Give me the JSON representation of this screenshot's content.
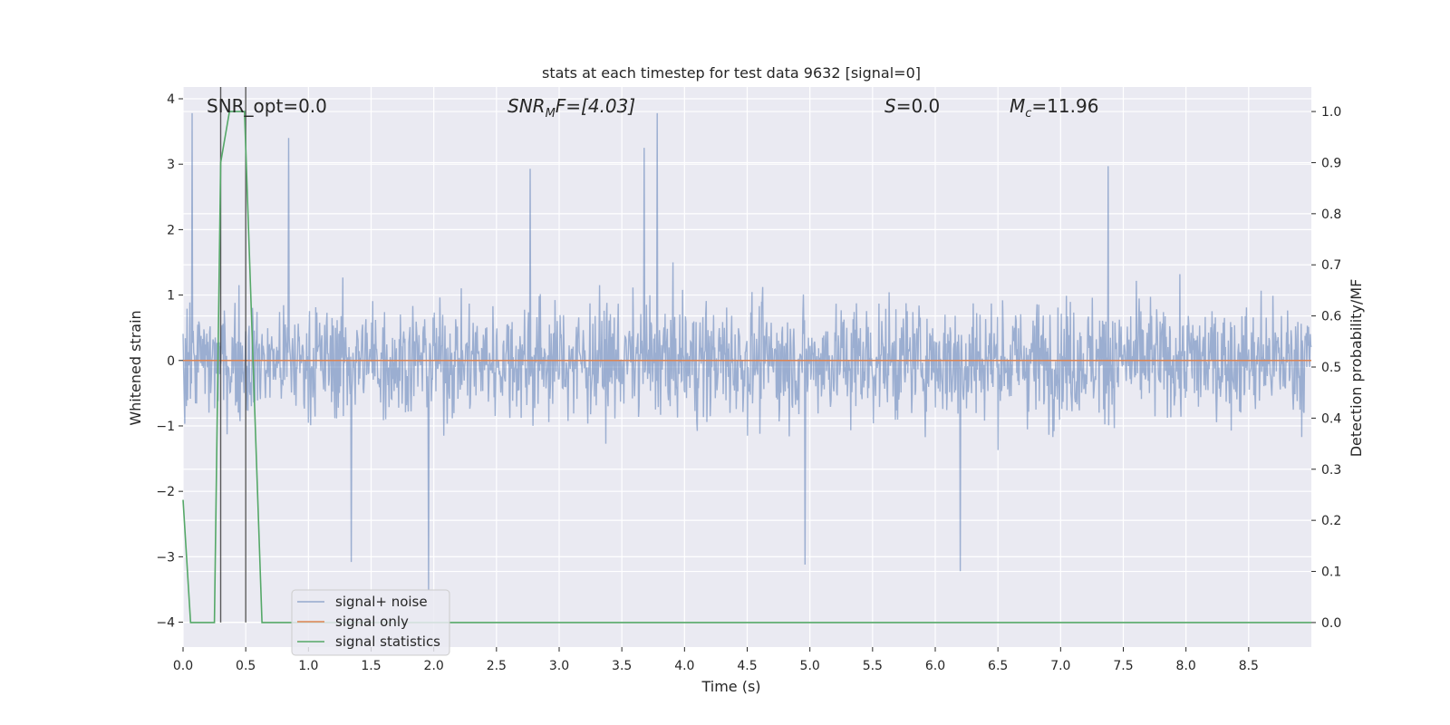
{
  "chart_data": {
    "type": "line",
    "title": "stats at each timestep for test data 9632 [signal=0]",
    "xlabel": "Time (s)",
    "ylabel_left": "Whitened strain",
    "ylabel_right": "Detection probability/MF",
    "xlim": [
      0,
      9.0
    ],
    "ylim_left": [
      -4.38,
      4.18
    ],
    "ylim_right": [
      -0.048,
      1.048
    ],
    "x_ticks": [
      0.0,
      0.5,
      1.0,
      1.5,
      2.0,
      2.5,
      3.0,
      3.5,
      4.0,
      4.5,
      5.0,
      5.5,
      6.0,
      6.5,
      7.0,
      7.5,
      8.0,
      8.5
    ],
    "x_tick_labels": [
      "0.0",
      "0.5",
      "1.0",
      "1.5",
      "2.0",
      "2.5",
      "3.0",
      "3.5",
      "4.0",
      "4.5",
      "5.0",
      "5.5",
      "6.0",
      "6.5",
      "7.0",
      "7.5",
      "8.0",
      "8.5"
    ],
    "y_ticks_left": [
      -4,
      -3,
      -2,
      -1,
      0,
      1,
      2,
      3,
      4
    ],
    "y_tick_labels_left": [
      "−4",
      "−3",
      "−2",
      "−1",
      "0",
      "1",
      "2",
      "3",
      "4"
    ],
    "y_ticks_right": [
      0.0,
      0.1,
      0.2,
      0.3,
      0.4,
      0.5,
      0.6,
      0.7,
      0.8,
      0.9,
      1.0
    ],
    "y_tick_labels_right": [
      "0.0",
      "0.1",
      "0.2",
      "0.3",
      "0.4",
      "0.5",
      "0.6",
      "0.7",
      "0.8",
      "0.9",
      "1.0"
    ],
    "annotations": {
      "snr_opt": "SNR_opt=0.0",
      "snr_mf_base": "SNR",
      "snr_mf_sub": "M",
      "snr_mf_rest": "F=[4.03]",
      "s_var": "S",
      "s_rest": "=0.0",
      "mc_base": "M",
      "mc_sub": "c",
      "mc_rest": "=11.96"
    },
    "series": [
      {
        "name": "signal+ noise",
        "axis": "left",
        "color": "#4c72b0",
        "style": "dense noise, approx. amplitude ±1.5 with peaks near ±3.8",
        "peaks": [
          {
            "x": 0.07,
            "y": 3.78
          },
          {
            "x": 0.84,
            "y": 3.4
          },
          {
            "x": 3.78,
            "y": 3.78
          },
          {
            "x": 3.68,
            "y": 3.25
          },
          {
            "x": 1.96,
            "y": -3.5
          },
          {
            "x": 4.96,
            "y": -3.12
          },
          {
            "x": 6.2,
            "y": -3.22
          },
          {
            "x": 2.77,
            "y": 2.93
          },
          {
            "x": 7.38,
            "y": 2.97
          },
          {
            "x": 1.34,
            "y": -3.08
          }
        ]
      },
      {
        "name": "signal only",
        "axis": "left",
        "color": "#dd8452",
        "x": [
          0.0,
          9.0
        ],
        "y": [
          0.0,
          0.0
        ]
      },
      {
        "name": "signal statistics",
        "axis": "right",
        "color": "#55a868",
        "x": [
          0.0,
          0.06,
          0.25,
          0.3,
          0.37,
          0.42,
          0.49,
          0.63,
          9.0
        ],
        "y": [
          0.24,
          0.0,
          0.0,
          0.9,
          1.0,
          1.0,
          1.0,
          0.0,
          0.0
        ]
      }
    ],
    "vertical_lines": [
      {
        "x": 0.3,
        "color": "#333333"
      },
      {
        "x": 0.5,
        "color": "#333333"
      }
    ],
    "legend_location": "lower-left"
  }
}
